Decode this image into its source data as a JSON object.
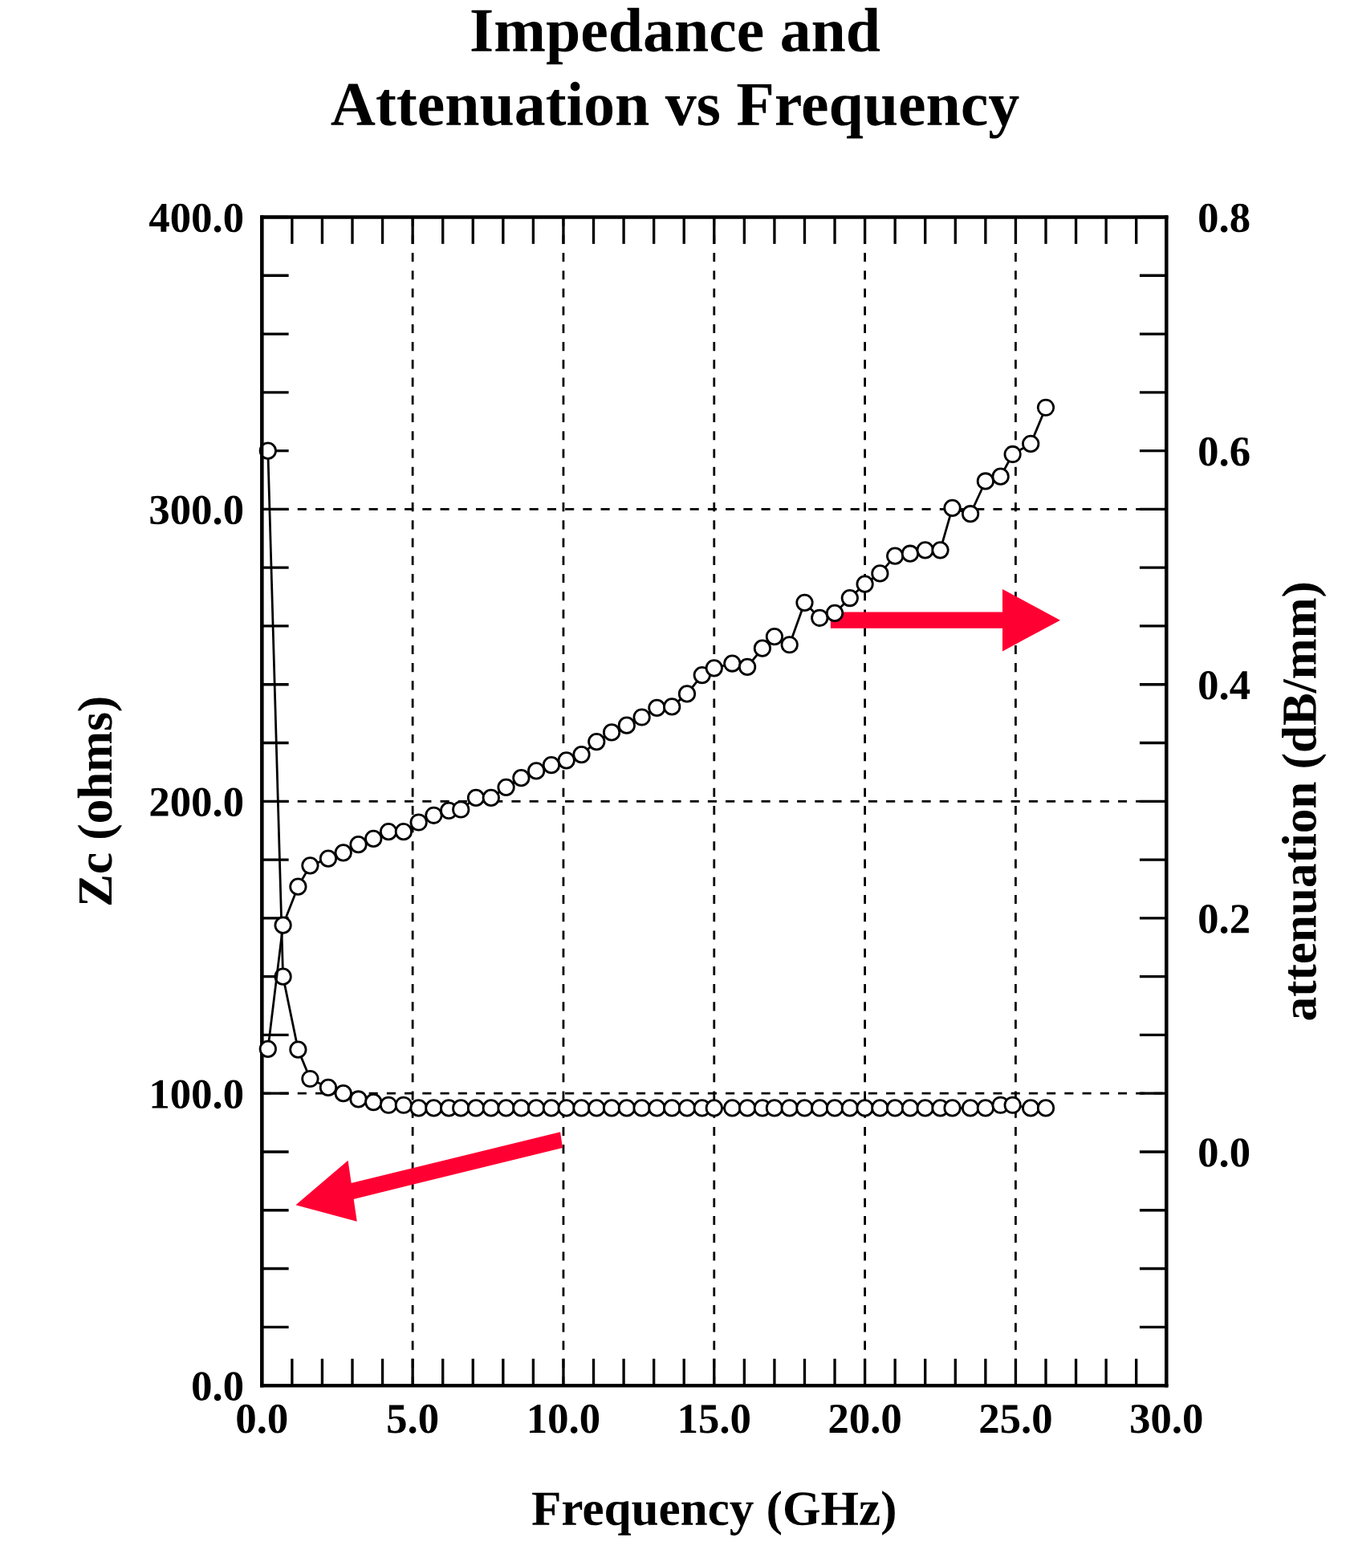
{
  "chart_data": {
    "type": "line",
    "title": "Impedance and\nAttenuation vs Frequency",
    "xlabel": "Frequency (GHz)",
    "ylabel": "Zc (ohms)",
    "y2label": "attenuation (dB/mm)",
    "x": [
      0.2,
      0.7,
      1.2,
      1.6,
      2.2,
      2.7,
      3.2,
      3.7,
      4.2,
      4.7,
      5.2,
      5.7,
      6.2,
      6.6,
      7.1,
      7.6,
      8.1,
      8.6,
      9.1,
      9.6,
      10.1,
      10.6,
      11.1,
      11.6,
      12.1,
      12.6,
      13.1,
      13.6,
      14.1,
      14.6,
      15.0,
      15.6,
      16.1,
      16.6,
      17.0,
      17.5,
      18.0,
      18.5,
      19.0,
      19.5,
      20.0,
      20.5,
      21.0,
      21.5,
      22.0,
      22.5,
      22.9,
      23.5,
      24.0,
      24.5,
      24.9,
      25.5,
      26.0
    ],
    "series": [
      {
        "color": "#000000",
        "values": [
          320,
          140,
          115,
          105,
          102,
          100,
          98,
          97,
          96,
          96,
          95,
          95,
          95,
          95,
          95,
          95,
          95,
          95,
          95,
          95,
          95,
          95,
          95,
          95,
          95,
          95,
          95,
          95,
          95,
          95,
          95,
          95,
          95,
          95,
          95,
          95,
          95,
          95,
          95,
          95,
          95,
          95,
          95,
          95,
          95,
          95,
          95,
          95,
          95,
          96,
          96,
          95,
          95
        ]
      },
      {
        "color": "#000000",
        "axis": "y2",
        "values": [
          0.088,
          0.194,
          0.227,
          0.245,
          0.251,
          0.256,
          0.263,
          0.268,
          0.274,
          0.274,
          0.282,
          0.288,
          0.292,
          0.293,
          0.303,
          0.303,
          0.312,
          0.32,
          0.326,
          0.331,
          0.335,
          0.34,
          0.351,
          0.359,
          0.365,
          0.372,
          0.38,
          0.381,
          0.392,
          0.408,
          0.414,
          0.418,
          0.415,
          0.431,
          0.441,
          0.434,
          0.47,
          0.457,
          0.461,
          0.474,
          0.486,
          0.495,
          0.51,
          0.512,
          0.515,
          0.515,
          0.551,
          0.546,
          0.574,
          0.578,
          0.597,
          0.606,
          0.637
        ]
      }
    ],
    "xlim": [
      0,
      30
    ],
    "xticks": [
      {
        "value": 0,
        "label": "0.0"
      },
      {
        "value": 5,
        "label": "5.0"
      },
      {
        "value": 10,
        "label": "10.0"
      },
      {
        "value": 15,
        "label": "15.0"
      },
      {
        "value": 20,
        "label": "20.0"
      },
      {
        "value": 25,
        "label": "25.0"
      },
      {
        "value": 30,
        "label": "30.0"
      }
    ],
    "ylim": [
      0,
      400
    ],
    "yticks": [
      {
        "value": 0,
        "label": "0.0"
      },
      {
        "value": 100,
        "label": "100.0"
      },
      {
        "value": 200,
        "label": "200.0"
      },
      {
        "value": 300,
        "label": "300.0"
      },
      {
        "value": 400,
        "label": "400.0"
      }
    ],
    "y2lim": [
      -0.2,
      0.8
    ],
    "y2ticks": [
      {
        "value": 0,
        "label": "0.0"
      },
      {
        "value": 0.2,
        "label": "0.2"
      },
      {
        "value": 0.4,
        "label": "0.4"
      },
      {
        "value": 0.6,
        "label": "0.6"
      },
      {
        "value": 0.8,
        "label": "0.8"
      }
    ],
    "grid": true,
    "marker": "circle",
    "line_style": "solid"
  }
}
